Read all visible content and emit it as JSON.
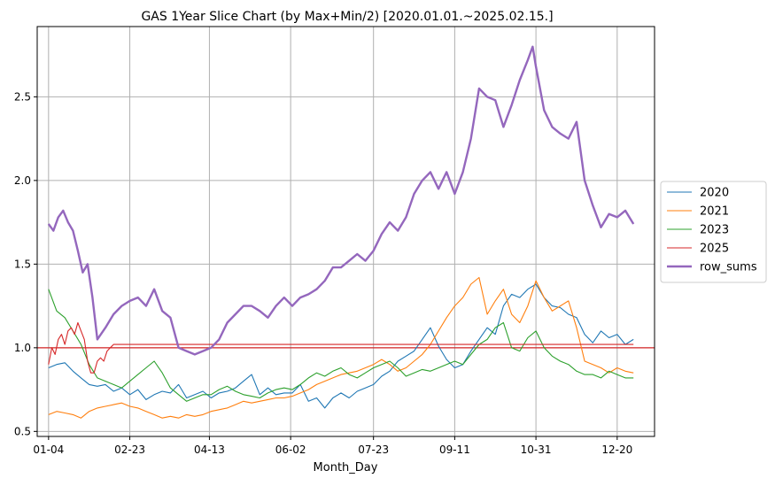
{
  "chart_data": {
    "type": "line",
    "title": "GAS 1Year Slice Chart (by Max+Min/2) [2020.01.01.~2025.02.15.]",
    "xlabel": "Month_Day",
    "ylabel": "",
    "x_ticks": [
      {
        "label": "01-04",
        "day": 0
      },
      {
        "label": "02-23",
        "day": 50
      },
      {
        "label": "04-13",
        "day": 99
      },
      {
        "label": "06-02",
        "day": 149
      },
      {
        "label": "07-23",
        "day": 200
      },
      {
        "label": "09-11",
        "day": 250
      },
      {
        "label": "10-31",
        "day": 300
      },
      {
        "label": "12-20",
        "day": 350
      }
    ],
    "xlim": [
      -7,
      373
    ],
    "y_ticks": [
      0.5,
      1.0,
      1.5,
      2.0,
      2.5
    ],
    "y_tick_labels": [
      "0.5",
      "1.0",
      "1.5",
      "2.0",
      "2.5"
    ],
    "ylim": [
      0.47,
      2.92
    ],
    "grid": true,
    "legend_position": "right-outside",
    "reference_line": {
      "y": 1.0,
      "color": "#d62728"
    },
    "series": [
      {
        "name": "2020",
        "color": "#1f77b4",
        "width": 1.1,
        "x": [
          0,
          5,
          10,
          15,
          20,
          25,
          30,
          35,
          40,
          45,
          50,
          55,
          60,
          65,
          70,
          75,
          80,
          85,
          90,
          95,
          100,
          105,
          110,
          115,
          120,
          125,
          130,
          135,
          140,
          145,
          150,
          155,
          160,
          165,
          170,
          175,
          180,
          185,
          190,
          195,
          200,
          205,
          210,
          215,
          220,
          225,
          230,
          235,
          240,
          245,
          250,
          255,
          260,
          265,
          270,
          275,
          280,
          285,
          290,
          295,
          300,
          305,
          310,
          315,
          320,
          325,
          330,
          335,
          340,
          345,
          350,
          355,
          360
        ],
        "y": [
          0.88,
          0.9,
          0.91,
          0.86,
          0.82,
          0.78,
          0.77,
          0.78,
          0.74,
          0.76,
          0.72,
          0.75,
          0.69,
          0.72,
          0.74,
          0.73,
          0.78,
          0.7,
          0.72,
          0.74,
          0.7,
          0.73,
          0.74,
          0.76,
          0.8,
          0.84,
          0.72,
          0.76,
          0.72,
          0.73,
          0.73,
          0.78,
          0.68,
          0.7,
          0.64,
          0.7,
          0.73,
          0.7,
          0.74,
          0.76,
          0.78,
          0.83,
          0.86,
          0.92,
          0.95,
          0.98,
          1.05,
          1.12,
          1.01,
          0.93,
          0.88,
          0.9,
          0.98,
          1.05,
          1.12,
          1.08,
          1.25,
          1.32,
          1.3,
          1.35,
          1.38,
          1.3,
          1.25,
          1.24,
          1.2,
          1.18,
          1.08,
          1.03,
          1.1,
          1.06,
          1.08,
          1.02,
          1.05
        ]
      },
      {
        "name": "2021",
        "color": "#ff7f0e",
        "width": 1.1,
        "x": [
          0,
          5,
          10,
          15,
          20,
          25,
          30,
          35,
          40,
          45,
          50,
          55,
          60,
          65,
          70,
          75,
          80,
          85,
          90,
          95,
          100,
          105,
          110,
          115,
          120,
          125,
          130,
          135,
          140,
          145,
          150,
          155,
          160,
          165,
          170,
          175,
          180,
          185,
          190,
          195,
          200,
          205,
          210,
          215,
          220,
          225,
          230,
          235,
          240,
          245,
          250,
          255,
          260,
          265,
          270,
          275,
          280,
          285,
          290,
          295,
          300,
          305,
          310,
          315,
          320,
          325,
          330,
          335,
          340,
          345,
          350,
          355,
          360
        ],
        "y": [
          0.6,
          0.62,
          0.61,
          0.6,
          0.58,
          0.62,
          0.64,
          0.65,
          0.66,
          0.67,
          0.65,
          0.64,
          0.62,
          0.6,
          0.58,
          0.59,
          0.58,
          0.6,
          0.59,
          0.6,
          0.62,
          0.63,
          0.64,
          0.66,
          0.68,
          0.67,
          0.68,
          0.69,
          0.7,
          0.7,
          0.71,
          0.73,
          0.75,
          0.78,
          0.8,
          0.82,
          0.84,
          0.85,
          0.86,
          0.88,
          0.9,
          0.93,
          0.9,
          0.86,
          0.88,
          0.92,
          0.96,
          1.02,
          1.1,
          1.18,
          1.25,
          1.3,
          1.38,
          1.42,
          1.2,
          1.28,
          1.35,
          1.2,
          1.15,
          1.25,
          1.4,
          1.3,
          1.22,
          1.25,
          1.28,
          1.12,
          0.92,
          0.9,
          0.88,
          0.85,
          0.88,
          0.86,
          0.85
        ]
      },
      {
        "name": "2023",
        "color": "#2ca02c",
        "width": 1.1,
        "x": [
          0,
          5,
          10,
          15,
          20,
          25,
          30,
          35,
          40,
          45,
          50,
          55,
          60,
          65,
          70,
          75,
          80,
          85,
          90,
          95,
          100,
          105,
          110,
          115,
          120,
          125,
          130,
          135,
          140,
          145,
          150,
          155,
          160,
          165,
          170,
          175,
          180,
          185,
          190,
          195,
          200,
          205,
          210,
          215,
          220,
          225,
          230,
          235,
          240,
          245,
          250,
          255,
          260,
          265,
          270,
          275,
          280,
          285,
          290,
          295,
          300,
          305,
          310,
          315,
          320,
          325,
          330,
          335,
          340,
          345,
          350,
          355,
          360
        ],
        "y": [
          1.35,
          1.22,
          1.18,
          1.1,
          1.02,
          0.9,
          0.82,
          0.8,
          0.78,
          0.76,
          0.8,
          0.84,
          0.88,
          0.92,
          0.85,
          0.76,
          0.72,
          0.68,
          0.7,
          0.72,
          0.72,
          0.75,
          0.77,
          0.74,
          0.72,
          0.71,
          0.7,
          0.73,
          0.75,
          0.76,
          0.75,
          0.78,
          0.82,
          0.85,
          0.83,
          0.86,
          0.88,
          0.84,
          0.82,
          0.85,
          0.88,
          0.9,
          0.92,
          0.88,
          0.83,
          0.85,
          0.87,
          0.86,
          0.88,
          0.9,
          0.92,
          0.9,
          0.96,
          1.02,
          1.05,
          1.12,
          1.15,
          1.0,
          0.98,
          1.06,
          1.1,
          1.0,
          0.95,
          0.92,
          0.9,
          0.86,
          0.84,
          0.84,
          0.82,
          0.86,
          0.84,
          0.82,
          0.82
        ]
      },
      {
        "name": "2025",
        "color": "#d62728",
        "width": 1.1,
        "x": [
          0,
          2,
          4,
          6,
          8,
          10,
          12,
          14,
          16,
          18,
          20,
          22,
          24,
          26,
          28,
          30,
          32,
          34,
          36,
          38,
          40,
          42,
          44,
          360
        ],
        "y": [
          0.9,
          1.0,
          0.96,
          1.05,
          1.08,
          1.02,
          1.1,
          1.12,
          1.08,
          1.15,
          1.1,
          1.05,
          0.92,
          0.85,
          0.85,
          0.92,
          0.94,
          0.92,
          0.98,
          1.0,
          1.02,
          1.02,
          1.02,
          1.02
        ]
      },
      {
        "name": "row_sums",
        "color": "#9467bd",
        "width": 2.4,
        "x": [
          0,
          3,
          6,
          9,
          12,
          15,
          18,
          21,
          24,
          27,
          30,
          35,
          40,
          45,
          50,
          55,
          60,
          65,
          70,
          75,
          80,
          85,
          90,
          95,
          100,
          105,
          110,
          115,
          120,
          125,
          130,
          135,
          140,
          145,
          150,
          155,
          160,
          165,
          170,
          175,
          180,
          185,
          190,
          195,
          200,
          205,
          210,
          215,
          220,
          225,
          230,
          235,
          240,
          245,
          250,
          255,
          260,
          265,
          270,
          275,
          280,
          285,
          290,
          295,
          298,
          300,
          305,
          310,
          315,
          320,
          325,
          330,
          335,
          340,
          345,
          350,
          355,
          360
        ],
        "y": [
          1.74,
          1.7,
          1.78,
          1.82,
          1.75,
          1.7,
          1.58,
          1.45,
          1.5,
          1.3,
          1.05,
          1.12,
          1.2,
          1.25,
          1.28,
          1.3,
          1.25,
          1.35,
          1.22,
          1.18,
          1.0,
          0.98,
          0.96,
          0.98,
          1.0,
          1.05,
          1.15,
          1.2,
          1.25,
          1.25,
          1.22,
          1.18,
          1.25,
          1.3,
          1.25,
          1.3,
          1.32,
          1.35,
          1.4,
          1.48,
          1.48,
          1.52,
          1.56,
          1.52,
          1.58,
          1.68,
          1.75,
          1.7,
          1.78,
          1.92,
          2.0,
          2.05,
          1.95,
          2.05,
          1.92,
          2.05,
          2.25,
          2.55,
          2.5,
          2.48,
          2.32,
          2.45,
          2.6,
          2.72,
          2.8,
          2.68,
          2.42,
          2.32,
          2.28,
          2.25,
          2.35,
          2.0,
          1.85,
          1.72,
          1.8,
          1.78,
          1.82,
          1.74
        ]
      }
    ]
  }
}
